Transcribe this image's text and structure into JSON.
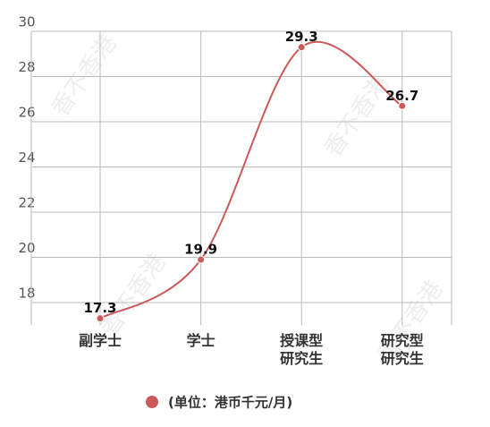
{
  "chart_data": {
    "type": "line",
    "categories": [
      "副学士",
      "学士",
      "授课型\n研究生",
      "研究型\n研究生"
    ],
    "series": [
      {
        "name": "(单位：港币千元/月)",
        "color": "#cd5a5a",
        "values": [
          17.3,
          19.9,
          29.3,
          26.7
        ]
      }
    ],
    "ylim": [
      17,
      30
    ],
    "yticks": [
      18,
      20,
      22,
      24,
      26,
      28,
      30
    ],
    "grid": true,
    "smooth": true,
    "legend": "bottom",
    "watermark": "香不香港"
  }
}
